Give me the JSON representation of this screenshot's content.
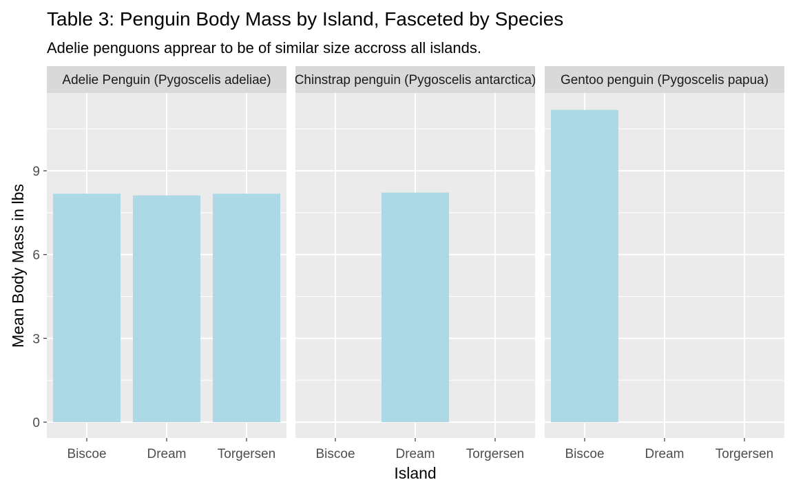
{
  "chart_data": {
    "type": "bar",
    "title": "Table 3: Penguin Body Mass by Island, Fasceted by Species",
    "subtitle": "Adelie penguons apprear to be of similar size accross all islands.",
    "xlabel": "Island",
    "ylabel": "Mean Body Mass in lbs",
    "categories": [
      "Biscoe",
      "Dream",
      "Torgersen"
    ],
    "y_ticks": [
      0,
      3,
      6,
      9
    ],
    "ylim": [
      -0.6,
      11.7
    ],
    "grid": true,
    "facets": [
      {
        "label": "Adelie Penguin (Pygoscelis adeliae)",
        "values": [
          8.18,
          8.12,
          8.18
        ]
      },
      {
        "label": "Chinstrap penguin (Pygoscelis antarctica)",
        "values": [
          null,
          8.22,
          null
        ]
      },
      {
        "label": "Gentoo penguin (Pygoscelis papua)",
        "values": [
          11.18,
          null,
          null
        ]
      }
    ],
    "colors": {
      "bar": "#ADD8E6",
      "panel_background": "#EBEBEB",
      "strip_background": "#D9D9D9",
      "grid": "#FFFFFF"
    }
  }
}
